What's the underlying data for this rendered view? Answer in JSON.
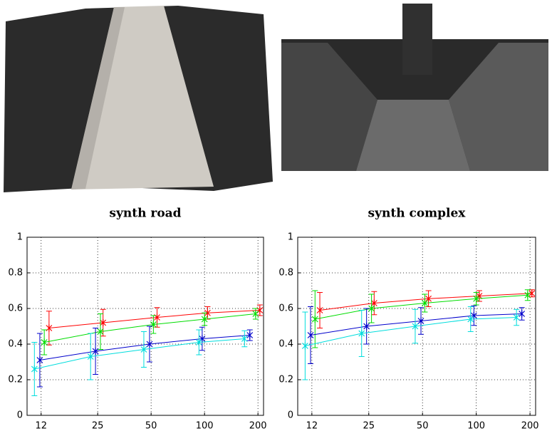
{
  "chart_data": [
    {
      "type": "line",
      "title": "synth road",
      "xscale": "log",
      "grid": true,
      "xlim": [
        10,
        215
      ],
      "xticks": [
        12,
        25,
        50,
        100,
        200
      ],
      "ylim": [
        0,
        1
      ],
      "yticks": [
        0,
        0.2,
        0.4,
        0.6,
        0.8,
        1
      ],
      "series": [
        {
          "color": "#ff0000",
          "x": [
            13.3,
            26.8,
            54,
            104,
            205
          ],
          "values": [
            0.49,
            0.52,
            0.55,
            0.575,
            0.59
          ],
          "errors": [
            0.095,
            0.075,
            0.055,
            0.035,
            0.03
          ]
        },
        {
          "color": "#00dd00",
          "x": [
            12.5,
            25.9,
            51.5,
            100,
            194
          ],
          "values": [
            0.41,
            0.47,
            0.51,
            0.54,
            0.57
          ],
          "errors": [
            0.07,
            0.1,
            0.05,
            0.035,
            0.03
          ]
        },
        {
          "color": "#0000cc",
          "x": [
            11.8,
            24.3,
            49,
            97,
            180
          ],
          "values": [
            0.31,
            0.36,
            0.4,
            0.43,
            0.45
          ],
          "errors": [
            0.15,
            0.13,
            0.1,
            0.065,
            0.03
          ]
        },
        {
          "color": "#00dddd",
          "x": [
            11,
            22.8,
            45.5,
            93,
            168
          ],
          "values": [
            0.26,
            0.33,
            0.37,
            0.41,
            0.43
          ],
          "errors": [
            0.15,
            0.13,
            0.1,
            0.07,
            0.045
          ]
        }
      ]
    },
    {
      "type": "line",
      "title": "synth complex",
      "xscale": "log",
      "grid": true,
      "xlim": [
        10,
        215
      ],
      "xticks": [
        12,
        25,
        50,
        100,
        200
      ],
      "ylim": [
        0,
        1
      ],
      "yticks": [
        0,
        0.2,
        0.4,
        0.6,
        0.8,
        1
      ],
      "series": [
        {
          "color": "#ff0000",
          "x": [
            13.3,
            26.8,
            54,
            104,
            205
          ],
          "values": [
            0.59,
            0.63,
            0.655,
            0.67,
            0.685
          ],
          "errors": [
            0.1,
            0.065,
            0.045,
            0.03,
            0.02
          ]
        },
        {
          "color": "#00dd00",
          "x": [
            12.5,
            25.9,
            51.5,
            100,
            194
          ],
          "values": [
            0.54,
            0.6,
            0.63,
            0.655,
            0.675
          ],
          "errors": [
            0.16,
            0.08,
            0.05,
            0.035,
            0.03
          ]
        },
        {
          "color": "#0000cc",
          "x": [
            11.8,
            24.3,
            49,
            97,
            180
          ],
          "values": [
            0.45,
            0.5,
            0.53,
            0.56,
            0.57
          ],
          "errors": [
            0.16,
            0.1,
            0.075,
            0.055,
            0.035
          ]
        },
        {
          "color": "#00dddd",
          "x": [
            11,
            22.8,
            45.5,
            93,
            168
          ],
          "values": [
            0.39,
            0.46,
            0.5,
            0.54,
            0.55
          ],
          "errors": [
            0.19,
            0.13,
            0.095,
            0.07,
            0.045
          ]
        }
      ]
    }
  ]
}
